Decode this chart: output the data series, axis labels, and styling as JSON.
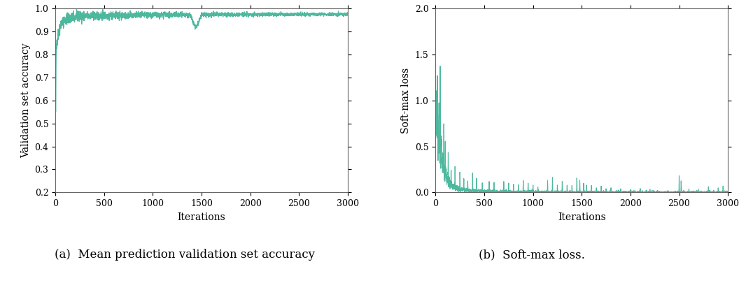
{
  "line_color": "#4db89e",
  "line_width": 0.8,
  "n_iterations": 3000,
  "acc_ylim": [
    0.2,
    1.0
  ],
  "acc_yticks": [
    0.2,
    0.3,
    0.4,
    0.5,
    0.6,
    0.7,
    0.8,
    0.9,
    1.0
  ],
  "loss_ylim": [
    0.0,
    2.0
  ],
  "loss_yticks": [
    0.0,
    0.5,
    1.0,
    1.5,
    2.0
  ],
  "xticks": [
    0,
    500,
    1000,
    1500,
    2000,
    2500,
    3000
  ],
  "xlabel": "Iterations",
  "ylabel_acc": "Validation set accuracy",
  "ylabel_loss": "Soft-max loss",
  "caption_a": "(a)  Mean prediction validation set accuracy",
  "caption_b": "(b)  Soft-max loss.",
  "caption_fontsize": 12,
  "tick_fontsize": 9,
  "label_fontsize": 10,
  "figsize": [
    10.56,
    4.05
  ],
  "dpi": 100,
  "seed": 42
}
